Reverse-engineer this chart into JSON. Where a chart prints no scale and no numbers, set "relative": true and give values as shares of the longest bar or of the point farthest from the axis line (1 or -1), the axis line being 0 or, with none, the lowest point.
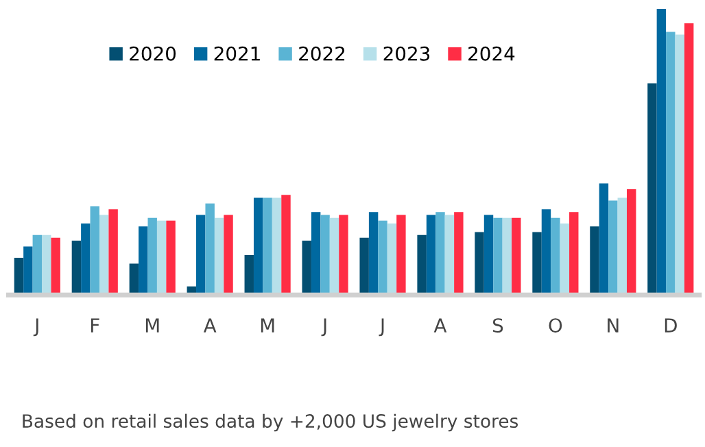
{
  "chart_data": {
    "type": "bar",
    "relative": true,
    "categories": [
      "J",
      "F",
      "M",
      "A",
      "M",
      "J",
      "J",
      "A",
      "S",
      "O",
      "N",
      "D"
    ],
    "series": [
      {
        "name": "2020",
        "color": "#034f72",
        "values": [
          0.13,
          0.19,
          0.11,
          0.03,
          0.14,
          0.19,
          0.2,
          0.21,
          0.22,
          0.22,
          0.24,
          0.74
        ]
      },
      {
        "name": "2021",
        "color": "#0069a0",
        "values": [
          0.17,
          0.25,
          0.24,
          0.28,
          0.34,
          0.29,
          0.29,
          0.28,
          0.28,
          0.3,
          0.39,
          1
        ]
      },
      {
        "name": "2022",
        "color": "#5ab4d4",
        "values": [
          0.21,
          0.31,
          0.27,
          0.32,
          0.34,
          0.28,
          0.26,
          0.29,
          0.27,
          0.27,
          0.33,
          0.92
        ]
      },
      {
        "name": "2023",
        "color": "#b6e0ea",
        "values": [
          0.21,
          0.28,
          0.26,
          0.27,
          0.34,
          0.27,
          0.25,
          0.28,
          0.27,
          0.25,
          0.34,
          0.91
        ]
      },
      {
        "name": "2024",
        "color": "#ff2d45",
        "values": [
          0.2,
          0.3,
          0.26,
          0.28,
          0.35,
          0.28,
          0.28,
          0.29,
          0.27,
          0.29,
          0.37,
          0.95
        ]
      }
    ],
    "legend": "top",
    "grid": false,
    "annotations": [
      "Based on retail sales data by +2,000 US jewelry stores"
    ]
  }
}
